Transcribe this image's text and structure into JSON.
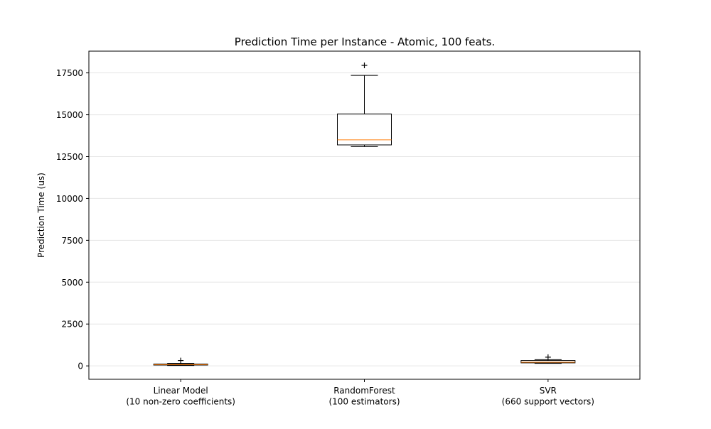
{
  "chart_data": {
    "type": "box",
    "title": "Prediction Time per Instance - Atomic, 100 feats.",
    "xlabel": "",
    "ylabel": "Prediction Time (us)",
    "ylim": [
      -800,
      18800
    ],
    "yticks": [
      0,
      2500,
      5000,
      7500,
      10000,
      12500,
      15000,
      17500
    ],
    "ytick_labels": [
      "0",
      "2500",
      "5000",
      "7500",
      "10000",
      "12500",
      "15000",
      "17500"
    ],
    "grid": "y",
    "categories": [
      [
        "Linear Model",
        "(10 non-zero coefficients)"
      ],
      [
        "RandomForest",
        "(100 estimators)"
      ],
      [
        "SVR",
        "(660 support vectors)"
      ]
    ],
    "boxes": [
      {
        "whislo": 20,
        "q1": 50,
        "med": 70,
        "q3": 110,
        "whishi": 150,
        "fliers": [
          320
        ]
      },
      {
        "whislo": 13100,
        "q1": 13200,
        "med": 13500,
        "q3": 15050,
        "whishi": 17350,
        "fliers": [
          17950
        ]
      },
      {
        "whislo": 150,
        "q1": 180,
        "med": 220,
        "q3": 320,
        "whishi": 370,
        "fliers": [
          520
        ]
      }
    ],
    "colors": {
      "box": "#000000",
      "median": "#ff7f0e",
      "grid": "#e6e6e6"
    }
  }
}
